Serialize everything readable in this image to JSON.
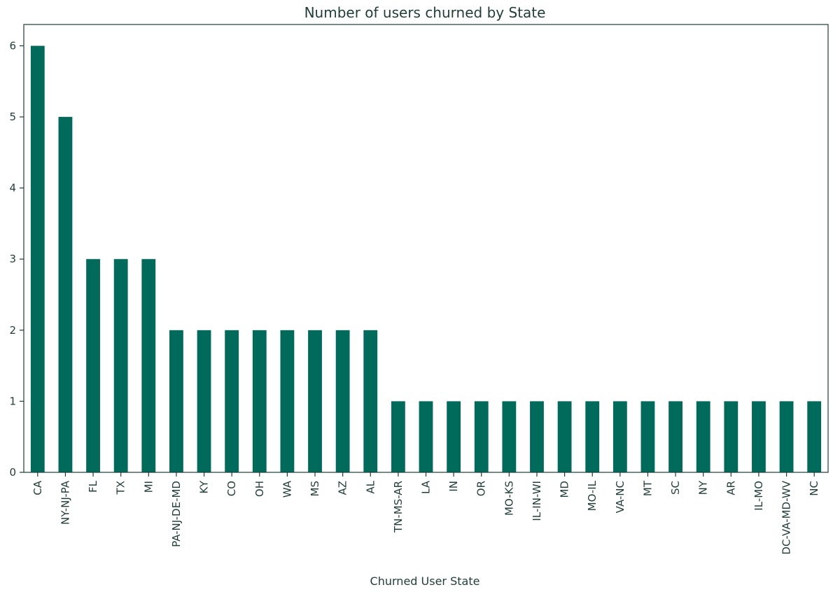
{
  "chart_data": {
    "type": "bar",
    "title": "Number of users churned by State",
    "xlabel": "Churned User State",
    "ylabel": "",
    "ylim": [
      0,
      6.3
    ],
    "yticks": [
      0,
      1,
      2,
      3,
      4,
      5,
      6
    ],
    "grid": false,
    "bar_color": "#006b5b",
    "categories": [
      "CA",
      "NY-NJ-PA",
      "FL",
      "TX",
      "MI",
      "PA-NJ-DE-MD",
      "KY",
      "CO",
      "OH",
      "WA",
      "MS",
      "AZ",
      "AL",
      "TN-MS-AR",
      "LA",
      "IN",
      "OR",
      "MO-KS",
      "IL-IN-WI",
      "MD",
      "MO-IL",
      "VA-NC",
      "MT",
      "SC",
      "NY",
      "AR",
      "IL-MO",
      "DC-VA-MD-WV",
      "NC"
    ],
    "values": [
      6,
      5,
      3,
      3,
      3,
      2,
      2,
      2,
      2,
      2,
      2,
      2,
      2,
      1,
      1,
      1,
      1,
      1,
      1,
      1,
      1,
      1,
      1,
      1,
      1,
      1,
      1,
      1,
      1
    ]
  }
}
